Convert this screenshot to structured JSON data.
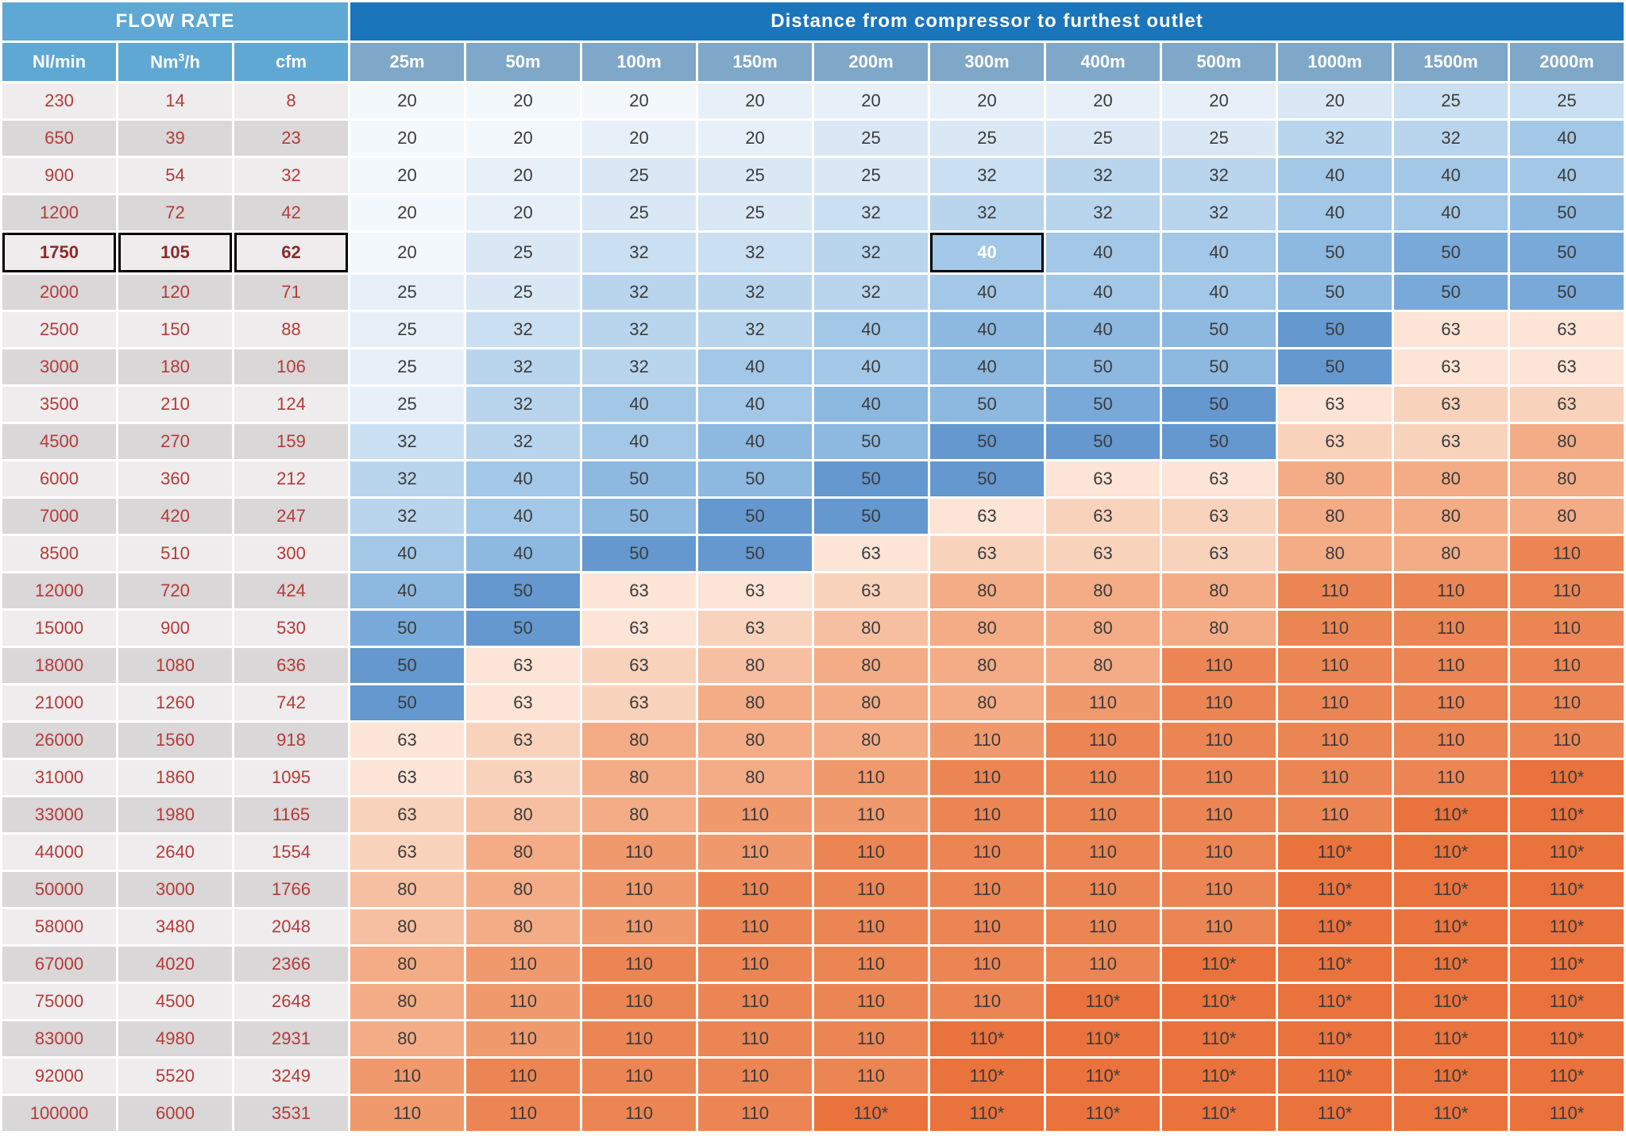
{
  "headers": {
    "flow_title": "FLOW RATE",
    "dist_title": "Distance from compressor to furthest outlet",
    "flow_cols": [
      "Nl/min",
      "Nm³/h",
      "cfm"
    ],
    "dist_cols": [
      "25m",
      "50m",
      "100m",
      "150m",
      "200m",
      "300m",
      "400m",
      "500m",
      "1000m",
      "1500m",
      "2000m"
    ]
  },
  "highlight_row_index": 4,
  "highlight_col_index": 5,
  "palette": {
    "flow_even": "#eeecec",
    "flow_odd": "#d9d7d7",
    "flow_text": "#b53a3a",
    "b0": "#f3f8fc",
    "b1": "#e7f0f9",
    "b2": "#dae8f5",
    "b3": "#cadff1",
    "b4": "#b9d5ed",
    "b5": "#a3c7e6",
    "b6": "#8db8df",
    "b7": "#79a9d8",
    "b8": "#6498cf",
    "o0": "#fce4d6",
    "o1": "#f9d2bc",
    "o2": "#f6bfa1",
    "o3": "#f3ac86",
    "o4": "#ef996d",
    "o5": "#ec8554",
    "o6": "#e9723d"
  },
  "rows": [
    {
      "f": [
        230,
        14,
        8
      ],
      "d": [
        [
          "20",
          "b0"
        ],
        [
          "20",
          "b0"
        ],
        [
          "20",
          "b0"
        ],
        [
          "20",
          "b1"
        ],
        [
          "20",
          "b1"
        ],
        [
          "20",
          "b1"
        ],
        [
          "20",
          "b1"
        ],
        [
          "20",
          "b1"
        ],
        [
          "20",
          "b2"
        ],
        [
          "25",
          "b3"
        ],
        [
          "25",
          "b3"
        ]
      ]
    },
    {
      "f": [
        650,
        39,
        23
      ],
      "d": [
        [
          "20",
          "b0"
        ],
        [
          "20",
          "b0"
        ],
        [
          "20",
          "b1"
        ],
        [
          "20",
          "b1"
        ],
        [
          "25",
          "b2"
        ],
        [
          "25",
          "b2"
        ],
        [
          "25",
          "b2"
        ],
        [
          "25",
          "b2"
        ],
        [
          "32",
          "b4"
        ],
        [
          "32",
          "b4"
        ],
        [
          "40",
          "b5"
        ]
      ]
    },
    {
      "f": [
        900,
        54,
        32
      ],
      "d": [
        [
          "20",
          "b0"
        ],
        [
          "20",
          "b1"
        ],
        [
          "25",
          "b2"
        ],
        [
          "25",
          "b2"
        ],
        [
          "25",
          "b2"
        ],
        [
          "32",
          "b3"
        ],
        [
          "32",
          "b4"
        ],
        [
          "32",
          "b4"
        ],
        [
          "40",
          "b5"
        ],
        [
          "40",
          "b5"
        ],
        [
          "40",
          "b5"
        ]
      ]
    },
    {
      "f": [
        1200,
        72,
        42
      ],
      "d": [
        [
          "20",
          "b0"
        ],
        [
          "20",
          "b1"
        ],
        [
          "25",
          "b2"
        ],
        [
          "25",
          "b2"
        ],
        [
          "32",
          "b3"
        ],
        [
          "32",
          "b4"
        ],
        [
          "32",
          "b4"
        ],
        [
          "32",
          "b4"
        ],
        [
          "40",
          "b5"
        ],
        [
          "40",
          "b5"
        ],
        [
          "50",
          "b6"
        ]
      ]
    },
    {
      "f": [
        1750,
        105,
        62
      ],
      "d": [
        [
          "20",
          "b0"
        ],
        [
          "25",
          "b2"
        ],
        [
          "32",
          "b3"
        ],
        [
          "32",
          "b3"
        ],
        [
          "32",
          "b4"
        ],
        [
          "40",
          "b5"
        ],
        [
          "40",
          "b5"
        ],
        [
          "40",
          "b5"
        ],
        [
          "50",
          "b6"
        ],
        [
          "50",
          "b7"
        ],
        [
          "50",
          "b7"
        ]
      ]
    },
    {
      "f": [
        2000,
        120,
        71
      ],
      "d": [
        [
          "25",
          "b1"
        ],
        [
          "25",
          "b2"
        ],
        [
          "32",
          "b4"
        ],
        [
          "32",
          "b4"
        ],
        [
          "32",
          "b4"
        ],
        [
          "40",
          "b5"
        ],
        [
          "40",
          "b5"
        ],
        [
          "40",
          "b5"
        ],
        [
          "50",
          "b6"
        ],
        [
          "50",
          "b7"
        ],
        [
          "50",
          "b7"
        ]
      ]
    },
    {
      "f": [
        2500,
        150,
        88
      ],
      "d": [
        [
          "25",
          "b1"
        ],
        [
          "32",
          "b3"
        ],
        [
          "32",
          "b4"
        ],
        [
          "32",
          "b4"
        ],
        [
          "40",
          "b5"
        ],
        [
          "40",
          "b6"
        ],
        [
          "40",
          "b6"
        ],
        [
          "50",
          "b6"
        ],
        [
          "50",
          "b8"
        ],
        [
          "63",
          "o0"
        ],
        [
          "63",
          "o0"
        ]
      ]
    },
    {
      "f": [
        3000,
        180,
        106
      ],
      "d": [
        [
          "25",
          "b1"
        ],
        [
          "32",
          "b4"
        ],
        [
          "32",
          "b4"
        ],
        [
          "40",
          "b5"
        ],
        [
          "40",
          "b5"
        ],
        [
          "40",
          "b6"
        ],
        [
          "50",
          "b6"
        ],
        [
          "50",
          "b6"
        ],
        [
          "50",
          "b8"
        ],
        [
          "63",
          "o0"
        ],
        [
          "63",
          "o0"
        ]
      ]
    },
    {
      "f": [
        3500,
        210,
        124
      ],
      "d": [
        [
          "25",
          "b1"
        ],
        [
          "32",
          "b4"
        ],
        [
          "40",
          "b5"
        ],
        [
          "40",
          "b5"
        ],
        [
          "40",
          "b6"
        ],
        [
          "50",
          "b6"
        ],
        [
          "50",
          "b7"
        ],
        [
          "50",
          "b8"
        ],
        [
          "63",
          "o0"
        ],
        [
          "63",
          "o1"
        ],
        [
          "63",
          "o1"
        ]
      ]
    },
    {
      "f": [
        4500,
        270,
        159
      ],
      "d": [
        [
          "32",
          "b3"
        ],
        [
          "32",
          "b4"
        ],
        [
          "40",
          "b5"
        ],
        [
          "40",
          "b6"
        ],
        [
          "50",
          "b6"
        ],
        [
          "50",
          "b8"
        ],
        [
          "50",
          "b8"
        ],
        [
          "50",
          "b8"
        ],
        [
          "63",
          "o1"
        ],
        [
          "63",
          "o1"
        ],
        [
          "80",
          "o3"
        ]
      ]
    },
    {
      "f": [
        6000,
        360,
        212
      ],
      "d": [
        [
          "32",
          "b4"
        ],
        [
          "40",
          "b5"
        ],
        [
          "50",
          "b6"
        ],
        [
          "50",
          "b6"
        ],
        [
          "50",
          "b8"
        ],
        [
          "50",
          "b8"
        ],
        [
          "63",
          "o0"
        ],
        [
          "63",
          "o0"
        ],
        [
          "80",
          "o3"
        ],
        [
          "80",
          "o3"
        ],
        [
          "80",
          "o3"
        ]
      ]
    },
    {
      "f": [
        7000,
        420,
        247
      ],
      "d": [
        [
          "32",
          "b4"
        ],
        [
          "40",
          "b5"
        ],
        [
          "50",
          "b6"
        ],
        [
          "50",
          "b8"
        ],
        [
          "50",
          "b8"
        ],
        [
          "63",
          "o0"
        ],
        [
          "63",
          "o1"
        ],
        [
          "63",
          "o1"
        ],
        [
          "80",
          "o3"
        ],
        [
          "80",
          "o3"
        ],
        [
          "80",
          "o3"
        ]
      ]
    },
    {
      "f": [
        8500,
        510,
        300
      ],
      "d": [
        [
          "40",
          "b5"
        ],
        [
          "40",
          "b6"
        ],
        [
          "50",
          "b8"
        ],
        [
          "50",
          "b8"
        ],
        [
          "63",
          "o0"
        ],
        [
          "63",
          "o1"
        ],
        [
          "63",
          "o1"
        ],
        [
          "63",
          "o1"
        ],
        [
          "80",
          "o3"
        ],
        [
          "80",
          "o3"
        ],
        [
          "110",
          "o5"
        ]
      ]
    },
    {
      "f": [
        12000,
        720,
        424
      ],
      "d": [
        [
          "40",
          "b6"
        ],
        [
          "50",
          "b8"
        ],
        [
          "63",
          "o0"
        ],
        [
          "63",
          "o0"
        ],
        [
          "63",
          "o1"
        ],
        [
          "80",
          "o3"
        ],
        [
          "80",
          "o3"
        ],
        [
          "80",
          "o3"
        ],
        [
          "110",
          "o5"
        ],
        [
          "110",
          "o5"
        ],
        [
          "110",
          "o5"
        ]
      ]
    },
    {
      "f": [
        15000,
        900,
        530
      ],
      "d": [
        [
          "50",
          "b7"
        ],
        [
          "50",
          "b8"
        ],
        [
          "63",
          "o0"
        ],
        [
          "63",
          "o1"
        ],
        [
          "80",
          "o2"
        ],
        [
          "80",
          "o3"
        ],
        [
          "80",
          "o3"
        ],
        [
          "80",
          "o3"
        ],
        [
          "110",
          "o5"
        ],
        [
          "110",
          "o5"
        ],
        [
          "110",
          "o5"
        ]
      ]
    },
    {
      "f": [
        18000,
        1080,
        636
      ],
      "d": [
        [
          "50",
          "b8"
        ],
        [
          "63",
          "o0"
        ],
        [
          "63",
          "o1"
        ],
        [
          "80",
          "o2"
        ],
        [
          "80",
          "o3"
        ],
        [
          "80",
          "o3"
        ],
        [
          "80",
          "o3"
        ],
        [
          "110",
          "o5"
        ],
        [
          "110",
          "o5"
        ],
        [
          "110",
          "o5"
        ],
        [
          "110",
          "o5"
        ]
      ]
    },
    {
      "f": [
        21000,
        1260,
        742
      ],
      "d": [
        [
          "50",
          "b8"
        ],
        [
          "63",
          "o0"
        ],
        [
          "63",
          "o1"
        ],
        [
          "80",
          "o3"
        ],
        [
          "80",
          "o3"
        ],
        [
          "80",
          "o3"
        ],
        [
          "110",
          "o4"
        ],
        [
          "110",
          "o5"
        ],
        [
          "110",
          "o5"
        ],
        [
          "110",
          "o5"
        ],
        [
          "110",
          "o5"
        ]
      ]
    },
    {
      "f": [
        26000,
        1560,
        918
      ],
      "d": [
        [
          "63",
          "o0"
        ],
        [
          "63",
          "o1"
        ],
        [
          "80",
          "o3"
        ],
        [
          "80",
          "o3"
        ],
        [
          "80",
          "o3"
        ],
        [
          "110",
          "o4"
        ],
        [
          "110",
          "o5"
        ],
        [
          "110",
          "o5"
        ],
        [
          "110",
          "o5"
        ],
        [
          "110",
          "o5"
        ],
        [
          "110",
          "o5"
        ]
      ]
    },
    {
      "f": [
        31000,
        1860,
        1095
      ],
      "d": [
        [
          "63",
          "o0"
        ],
        [
          "63",
          "o1"
        ],
        [
          "80",
          "o3"
        ],
        [
          "80",
          "o3"
        ],
        [
          "110",
          "o4"
        ],
        [
          "110",
          "o5"
        ],
        [
          "110",
          "o5"
        ],
        [
          "110",
          "o5"
        ],
        [
          "110",
          "o5"
        ],
        [
          "110",
          "o5"
        ],
        [
          "110*",
          "o6"
        ]
      ]
    },
    {
      "f": [
        33000,
        1980,
        1165
      ],
      "d": [
        [
          "63",
          "o1"
        ],
        [
          "80",
          "o2"
        ],
        [
          "80",
          "o3"
        ],
        [
          "110",
          "o4"
        ],
        [
          "110",
          "o4"
        ],
        [
          "110",
          "o5"
        ],
        [
          "110",
          "o5"
        ],
        [
          "110",
          "o5"
        ],
        [
          "110",
          "o5"
        ],
        [
          "110*",
          "o6"
        ],
        [
          "110*",
          "o6"
        ]
      ]
    },
    {
      "f": [
        44000,
        2640,
        1554
      ],
      "d": [
        [
          "63",
          "o1"
        ],
        [
          "80",
          "o3"
        ],
        [
          "110",
          "o4"
        ],
        [
          "110",
          "o4"
        ],
        [
          "110",
          "o5"
        ],
        [
          "110",
          "o5"
        ],
        [
          "110",
          "o5"
        ],
        [
          "110",
          "o5"
        ],
        [
          "110*",
          "o6"
        ],
        [
          "110*",
          "o6"
        ],
        [
          "110*",
          "o6"
        ]
      ]
    },
    {
      "f": [
        50000,
        3000,
        1766
      ],
      "d": [
        [
          "80",
          "o2"
        ],
        [
          "80",
          "o3"
        ],
        [
          "110",
          "o4"
        ],
        [
          "110",
          "o5"
        ],
        [
          "110",
          "o5"
        ],
        [
          "110",
          "o5"
        ],
        [
          "110",
          "o5"
        ],
        [
          "110",
          "o5"
        ],
        [
          "110*",
          "o6"
        ],
        [
          "110*",
          "o6"
        ],
        [
          "110*",
          "o6"
        ]
      ]
    },
    {
      "f": [
        58000,
        3480,
        2048
      ],
      "d": [
        [
          "80",
          "o2"
        ],
        [
          "80",
          "o3"
        ],
        [
          "110",
          "o4"
        ],
        [
          "110",
          "o5"
        ],
        [
          "110",
          "o5"
        ],
        [
          "110",
          "o5"
        ],
        [
          "110",
          "o5"
        ],
        [
          "110",
          "o5"
        ],
        [
          "110*",
          "o6"
        ],
        [
          "110*",
          "o6"
        ],
        [
          "110*",
          "o6"
        ]
      ]
    },
    {
      "f": [
        67000,
        4020,
        2366
      ],
      "d": [
        [
          "80",
          "o3"
        ],
        [
          "110",
          "o4"
        ],
        [
          "110",
          "o5"
        ],
        [
          "110",
          "o5"
        ],
        [
          "110",
          "o5"
        ],
        [
          "110",
          "o5"
        ],
        [
          "110",
          "o5"
        ],
        [
          "110*",
          "o6"
        ],
        [
          "110*",
          "o6"
        ],
        [
          "110*",
          "o6"
        ],
        [
          "110*",
          "o6"
        ]
      ]
    },
    {
      "f": [
        75000,
        4500,
        2648
      ],
      "d": [
        [
          "80",
          "o3"
        ],
        [
          "110",
          "o4"
        ],
        [
          "110",
          "o5"
        ],
        [
          "110",
          "o5"
        ],
        [
          "110",
          "o5"
        ],
        [
          "110",
          "o5"
        ],
        [
          "110*",
          "o6"
        ],
        [
          "110*",
          "o6"
        ],
        [
          "110*",
          "o6"
        ],
        [
          "110*",
          "o6"
        ],
        [
          "110*",
          "o6"
        ]
      ]
    },
    {
      "f": [
        83000,
        4980,
        2931
      ],
      "d": [
        [
          "80",
          "o3"
        ],
        [
          "110",
          "o4"
        ],
        [
          "110",
          "o5"
        ],
        [
          "110",
          "o5"
        ],
        [
          "110",
          "o5"
        ],
        [
          "110*",
          "o6"
        ],
        [
          "110*",
          "o6"
        ],
        [
          "110*",
          "o6"
        ],
        [
          "110*",
          "o6"
        ],
        [
          "110*",
          "o6"
        ],
        [
          "110*",
          "o6"
        ]
      ]
    },
    {
      "f": [
        92000,
        5520,
        3249
      ],
      "d": [
        [
          "110",
          "o4"
        ],
        [
          "110",
          "o5"
        ],
        [
          "110",
          "o5"
        ],
        [
          "110",
          "o5"
        ],
        [
          "110",
          "o5"
        ],
        [
          "110*",
          "o6"
        ],
        [
          "110*",
          "o6"
        ],
        [
          "110*",
          "o6"
        ],
        [
          "110*",
          "o6"
        ],
        [
          "110*",
          "o6"
        ],
        [
          "110*",
          "o6"
        ]
      ]
    },
    {
      "f": [
        100000,
        6000,
        3531
      ],
      "d": [
        [
          "110",
          "o4"
        ],
        [
          "110",
          "o5"
        ],
        [
          "110",
          "o5"
        ],
        [
          "110",
          "o5"
        ],
        [
          "110*",
          "o6"
        ],
        [
          "110*",
          "o6"
        ],
        [
          "110*",
          "o6"
        ],
        [
          "110*",
          "o6"
        ],
        [
          "110*",
          "o6"
        ],
        [
          "110*",
          "o6"
        ],
        [
          "110*",
          "o6"
        ]
      ]
    }
  ]
}
